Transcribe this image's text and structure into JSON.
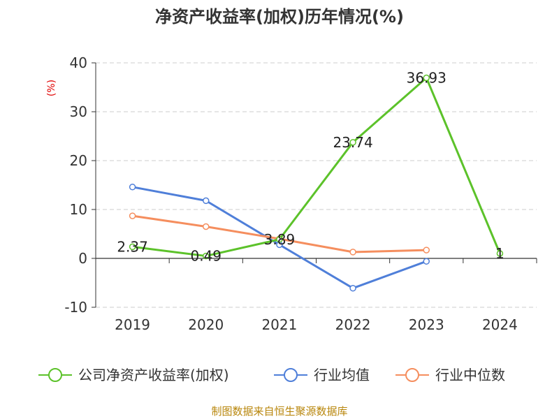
{
  "chart_data": {
    "type": "line",
    "title": "净资产收益率(加权)历年情况(%)",
    "ylabel": "(%)",
    "categories": [
      "2019",
      "2020",
      "2021",
      "2022",
      "2023",
      "2024"
    ],
    "ylim": [
      -10,
      40
    ],
    "yticks": [
      "40",
      "30",
      "20",
      "10",
      "0",
      "-10"
    ],
    "grid": true,
    "legend_position": "bottom",
    "series": [
      {
        "name": "公司净资产收益率(加权)",
        "color": "#5cc22a",
        "values": [
          2.37,
          0.49,
          3.89,
          23.74,
          36.93,
          1
        ],
        "labels": [
          "2.37",
          "0.49",
          "3.89",
          "23.74",
          "36.93",
          "1"
        ]
      },
      {
        "name": "行业均值",
        "color": "#4f7fd9",
        "values": [
          14.6,
          11.8,
          2.8,
          -6.1,
          -0.6,
          null
        ]
      },
      {
        "name": "行业中位数",
        "color": "#f58e5e",
        "values": [
          8.7,
          6.5,
          4.0,
          1.3,
          1.7,
          null
        ]
      }
    ],
    "source": "制图数据来自恒生聚源数据库"
  }
}
